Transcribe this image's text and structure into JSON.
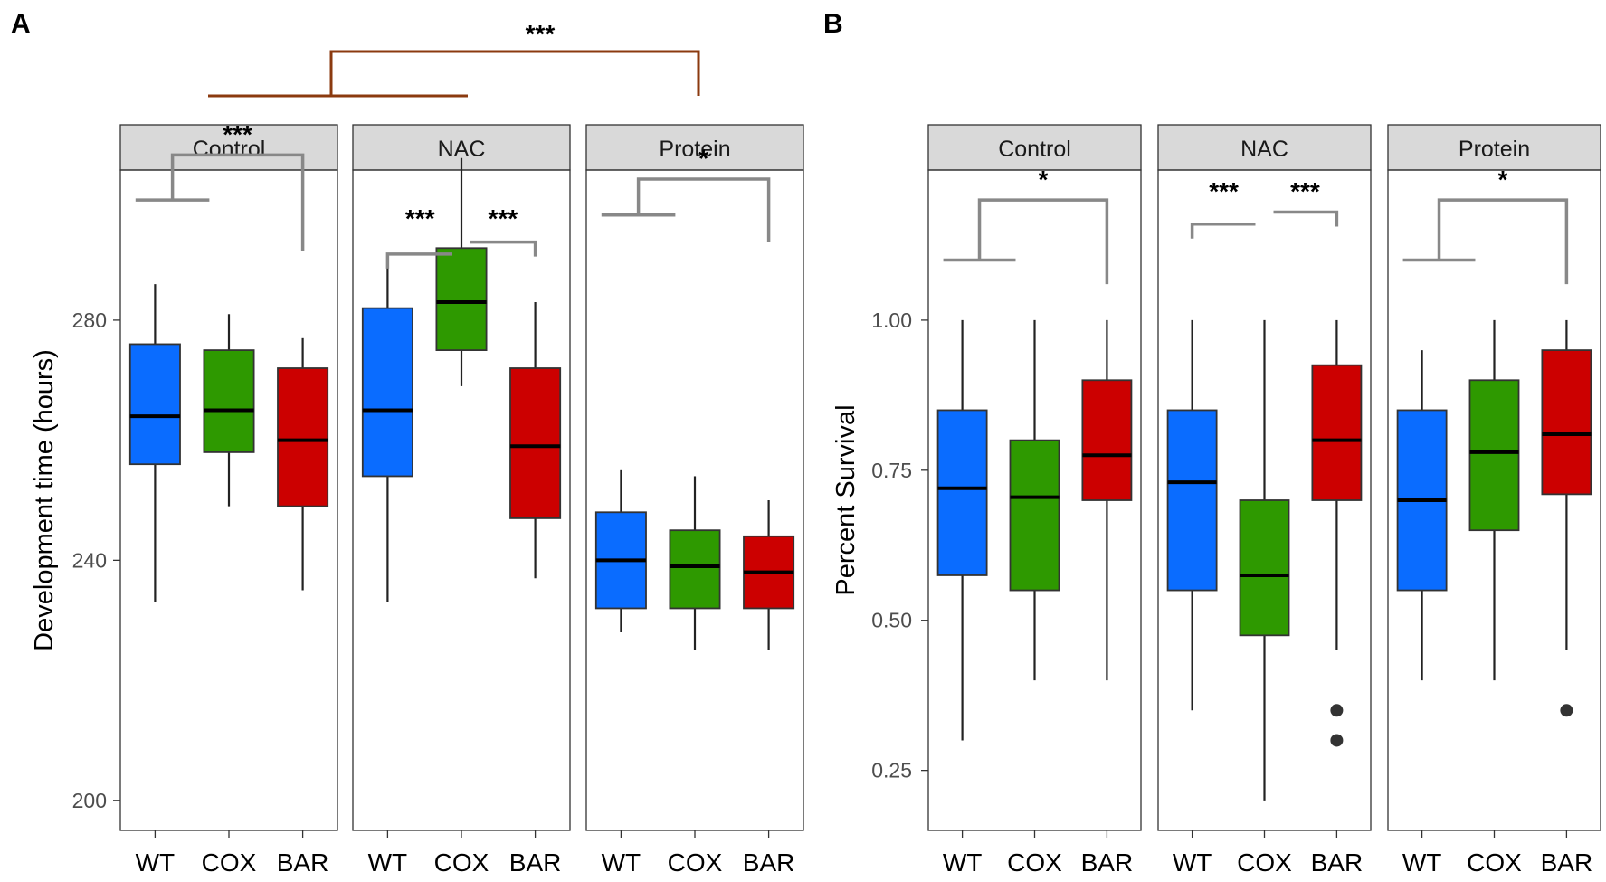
{
  "chart_data": [
    {
      "panel_label": "A",
      "type": "boxplot",
      "ylabel": "Development time (hours)",
      "ylim": [
        195,
        305
      ],
      "yticks": [
        200,
        240,
        280
      ],
      "ytick_labels": [
        "200",
        "240",
        "280"
      ],
      "categories": [
        "WT",
        "COX",
        "BAR"
      ],
      "colors": {
        "WT": "#0a6cff",
        "COX": "#2e9900",
        "BAR": "#cc0000"
      },
      "facets": [
        {
          "name": "Control",
          "boxes": [
            {
              "group": "WT",
              "min": 233,
              "q1": 256,
              "median": 264,
              "q3": 276,
              "max": 286,
              "outliers": []
            },
            {
              "group": "COX",
              "min": 249,
              "q1": 258,
              "median": 265,
              "q3": 275,
              "max": 281,
              "outliers": []
            },
            {
              "group": "BAR",
              "min": 235,
              "q1": 249,
              "median": 260,
              "q3": 272,
              "max": 277,
              "outliers": []
            }
          ],
          "comparisons": [
            {
              "from": "WT+COX",
              "to": "BAR",
              "label": "***"
            }
          ]
        },
        {
          "name": "NAC",
          "boxes": [
            {
              "group": "WT",
              "min": 233,
              "q1": 254,
              "median": 265,
              "q3": 282,
              "max": 291,
              "outliers": []
            },
            {
              "group": "COX",
              "min": 269,
              "q1": 275,
              "median": 283,
              "q3": 292,
              "max": 307,
              "outliers": []
            },
            {
              "group": "BAR",
              "min": 237,
              "q1": 247,
              "median": 259,
              "q3": 272,
              "max": 283,
              "outliers": []
            }
          ],
          "comparisons": [
            {
              "from": "WT",
              "to": "COX",
              "label": "***"
            },
            {
              "from": "COX",
              "to": "BAR",
              "label": "***"
            }
          ]
        },
        {
          "name": "Protein",
          "boxes": [
            {
              "group": "WT",
              "min": 228,
              "q1": 232,
              "median": 240,
              "q3": 248,
              "max": 255,
              "outliers": []
            },
            {
              "group": "COX",
              "min": 225,
              "q1": 232,
              "median": 239,
              "q3": 245,
              "max": 254,
              "outliers": []
            },
            {
              "group": "BAR",
              "min": 225,
              "q1": 232,
              "median": 238,
              "q3": 244,
              "max": 250,
              "outliers": []
            }
          ],
          "comparisons": [
            {
              "from": "WT+COX",
              "to": "BAR",
              "label": "*"
            }
          ]
        }
      ],
      "top_comparison": {
        "from": "Control+NAC",
        "to": "Protein",
        "label": "***",
        "color": "#8b3a0f"
      }
    },
    {
      "panel_label": "B",
      "type": "boxplot",
      "ylabel": "Percent Survival",
      "ylim": [
        0.15,
        1.25
      ],
      "yticks": [
        0.25,
        0.5,
        0.75,
        1.0
      ],
      "ytick_labels": [
        "0.25",
        "0.50",
        "0.75",
        "1.00"
      ],
      "categories": [
        "WT",
        "COX",
        "BAR"
      ],
      "colors": {
        "WT": "#0a6cff",
        "COX": "#2e9900",
        "BAR": "#cc0000"
      },
      "facets": [
        {
          "name": "Control",
          "boxes": [
            {
              "group": "WT",
              "min": 0.3,
              "q1": 0.575,
              "median": 0.72,
              "q3": 0.85,
              "max": 1.0,
              "outliers": []
            },
            {
              "group": "COX",
              "min": 0.4,
              "q1": 0.55,
              "median": 0.705,
              "q3": 0.8,
              "max": 1.0,
              "outliers": []
            },
            {
              "group": "BAR",
              "min": 0.4,
              "q1": 0.7,
              "median": 0.775,
              "q3": 0.9,
              "max": 1.0,
              "outliers": []
            }
          ],
          "comparisons": [
            {
              "from": "WT+COX",
              "to": "BAR",
              "label": "*"
            }
          ]
        },
        {
          "name": "NAC",
          "boxes": [
            {
              "group": "WT",
              "min": 0.35,
              "q1": 0.55,
              "median": 0.73,
              "q3": 0.85,
              "max": 1.0,
              "outliers": []
            },
            {
              "group": "COX",
              "min": 0.2,
              "q1": 0.475,
              "median": 0.575,
              "q3": 0.7,
              "max": 1.0,
              "outliers": []
            },
            {
              "group": "BAR",
              "min": 0.45,
              "q1": 0.7,
              "median": 0.8,
              "q3": 0.925,
              "max": 1.0,
              "outliers": [
                0.35,
                0.3
              ]
            }
          ],
          "comparisons": [
            {
              "from": "WT",
              "to": "COX",
              "label": "***"
            },
            {
              "from": "COX",
              "to": "BAR",
              "label": "***"
            }
          ]
        },
        {
          "name": "Protein",
          "boxes": [
            {
              "group": "WT",
              "min": 0.4,
              "q1": 0.55,
              "median": 0.7,
              "q3": 0.85,
              "max": 0.95,
              "outliers": []
            },
            {
              "group": "COX",
              "min": 0.4,
              "q1": 0.65,
              "median": 0.78,
              "q3": 0.9,
              "max": 1.0,
              "outliers": []
            },
            {
              "group": "BAR",
              "min": 0.45,
              "q1": 0.71,
              "median": 0.81,
              "q3": 0.95,
              "max": 1.0,
              "outliers": [
                0.35
              ]
            }
          ],
          "comparisons": [
            {
              "from": "WT+COX",
              "to": "BAR",
              "label": "*"
            }
          ]
        }
      ]
    }
  ]
}
